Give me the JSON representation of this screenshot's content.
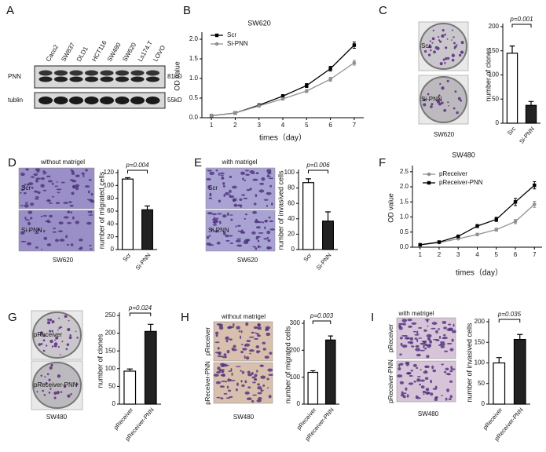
{
  "blot": {
    "panel": "A",
    "lanes": [
      "Caco2",
      "SW837",
      "DLD1",
      "HCT116",
      "SW480",
      "SW620",
      "Ls174.T",
      "LOVO"
    ],
    "bands": [
      {
        "name": "PNN",
        "size": "81kD"
      },
      {
        "name": "tublin",
        "size": "55kD"
      }
    ]
  },
  "chart_data": [
    {
      "panel": "B",
      "type": "line",
      "title": "SW620",
      "xlabel": "times（day）",
      "ylabel": "OD value",
      "x": [
        1,
        2,
        3,
        4,
        5,
        6,
        7
      ],
      "xlim": [
        0.6,
        7.4
      ],
      "xticks": [
        1,
        2,
        3,
        4,
        5,
        6,
        7
      ],
      "ylim": [
        0,
        2.1
      ],
      "yticks": [
        {
          "value": 0,
          "label": "0.0"
        },
        0.5,
        {
          "value": 1,
          "label": "1.0"
        },
        1.5,
        {
          "value": 2,
          "label": "2.0"
        }
      ],
      "legend": "upper left",
      "series": [
        {
          "name": "Scr",
          "color": "#000000",
          "marker": "square",
          "values": [
            0.05,
            0.12,
            0.32,
            0.55,
            0.82,
            1.25,
            1.85
          ],
          "errors": [
            0.02,
            0.02,
            0.03,
            0.04,
            0.05,
            0.06,
            0.08
          ]
        },
        {
          "name": "Si-PNN",
          "color": "#909090",
          "marker": "circle",
          "values": [
            0.05,
            0.12,
            0.3,
            0.48,
            0.68,
            0.98,
            1.4
          ],
          "errors": [
            0.02,
            0.02,
            0.03,
            0.03,
            0.04,
            0.05,
            0.06
          ]
        }
      ]
    },
    {
      "panel": "C",
      "type": "bar",
      "ylabel": "number of clones",
      "image_labels": [
        "Scr",
        "Si-PNN"
      ],
      "image_caption": "SW620",
      "annotation": "p=0.001",
      "categories": [
        "Src",
        "Si-PNN"
      ],
      "values": [
        145,
        37
      ],
      "errors": [
        15,
        8
      ],
      "colors": [
        "#ffffff",
        "#222222"
      ],
      "ylim": [
        0,
        200
      ],
      "yticks": [
        0,
        50,
        100,
        150,
        200
      ]
    },
    {
      "panel": "D",
      "type": "bar",
      "ylabel": "number of migrated cells",
      "image_title": "without matrigel",
      "image_labels": [
        "Scr",
        "Si-PNN"
      ],
      "image_caption": "SW620",
      "annotation": "p=0.004",
      "categories": [
        "Scr",
        "Si-PNN"
      ],
      "values": [
        110,
        62
      ],
      "errors": [
        2,
        6
      ],
      "colors": [
        "#ffffff",
        "#222222"
      ],
      "ylim": [
        0,
        120
      ],
      "yticks": [
        0,
        20,
        40,
        60,
        80,
        100,
        120
      ]
    },
    {
      "panel": "E",
      "type": "bar",
      "ylabel": "number of invasived cells",
      "image_title": "with matrigel",
      "image_labels": [
        "Scr",
        "Si-PNN"
      ],
      "image_caption": "SW620",
      "annotation": "p=0.006",
      "categories": [
        "Scr",
        "Si-PNN"
      ],
      "values": [
        87,
        37
      ],
      "errors": [
        5,
        12
      ],
      "colors": [
        "#ffffff",
        "#222222"
      ],
      "ylim": [
        0,
        100
      ],
      "yticks": [
        0,
        20,
        40,
        60,
        80,
        100
      ]
    },
    {
      "panel": "F",
      "type": "line",
      "title": "SW480",
      "xlabel": "times（day）",
      "ylabel": "OD value",
      "x": [
        1,
        2,
        3,
        4,
        5,
        6,
        7
      ],
      "xlim": [
        0.6,
        7.4
      ],
      "xticks": [
        1,
        2,
        3,
        4,
        5,
        6,
        7
      ],
      "ylim": [
        0,
        2.6
      ],
      "yticks": [
        {
          "value": 0,
          "label": "0.0"
        },
        0.5,
        {
          "value": 1,
          "label": "1.0"
        },
        1.5,
        {
          "value": 2,
          "label": "2.0"
        },
        2.5
      ],
      "legend": "upper left",
      "series": [
        {
          "name": "pReceiver",
          "color": "#909090",
          "marker": "circle",
          "values": [
            0.08,
            0.15,
            0.28,
            0.42,
            0.58,
            0.85,
            1.42
          ],
          "errors": [
            0.02,
            0.02,
            0.03,
            0.04,
            0.05,
            0.07,
            0.1
          ]
        },
        {
          "name": "pReceiver-PNN",
          "color": "#000000",
          "marker": "square",
          "values": [
            0.08,
            0.17,
            0.36,
            0.7,
            0.92,
            1.5,
            2.05
          ],
          "errors": [
            0.02,
            0.02,
            0.04,
            0.05,
            0.07,
            0.12,
            0.12
          ]
        }
      ]
    },
    {
      "panel": "G",
      "type": "bar",
      "ylabel": "number of clones",
      "image_labels": [
        "pReceiver",
        "pReceiver-PNN"
      ],
      "image_caption": "SW480",
      "annotation": "p=0.024",
      "categories": [
        "pReceiver",
        "pReceiver-PNN"
      ],
      "values": [
        93,
        205
      ],
      "errors": [
        6,
        20
      ],
      "colors": [
        "#ffffff",
        "#222222"
      ],
      "ylim": [
        0,
        250
      ],
      "yticks": [
        0,
        50,
        100,
        150,
        200,
        250
      ]
    },
    {
      "panel": "H",
      "type": "bar",
      "ylabel": "number of migrated cells",
      "image_title": "without matrigel",
      "image_labels": [
        "pReceiver",
        "pReceiver-PNN"
      ],
      "image_caption": "SW480",
      "annotation": "p=0.003",
      "categories": [
        "pReceiver",
        "pReceiver-PNN"
      ],
      "values": [
        118,
        238
      ],
      "errors": [
        6,
        15
      ],
      "colors": [
        "#ffffff",
        "#222222"
      ],
      "ylim": [
        0,
        300
      ],
      "yticks": [
        0,
        100,
        200,
        300
      ]
    },
    {
      "panel": "I",
      "type": "bar",
      "ylabel": "number of invasived cells",
      "image_title": "with matrigel",
      "image_labels": [
        "pReceiver",
        "pReceiver-PNN"
      ],
      "image_caption": "SW480",
      "annotation": "p=0.035",
      "categories": [
        "pReceiver",
        "pReceiver-PNN"
      ],
      "values": [
        100,
        157
      ],
      "errors": [
        13,
        12
      ],
      "colors": [
        "#ffffff",
        "#222222"
      ],
      "ylim": [
        0,
        200
      ],
      "yticks": [
        0,
        50,
        100,
        150,
        200
      ]
    }
  ]
}
